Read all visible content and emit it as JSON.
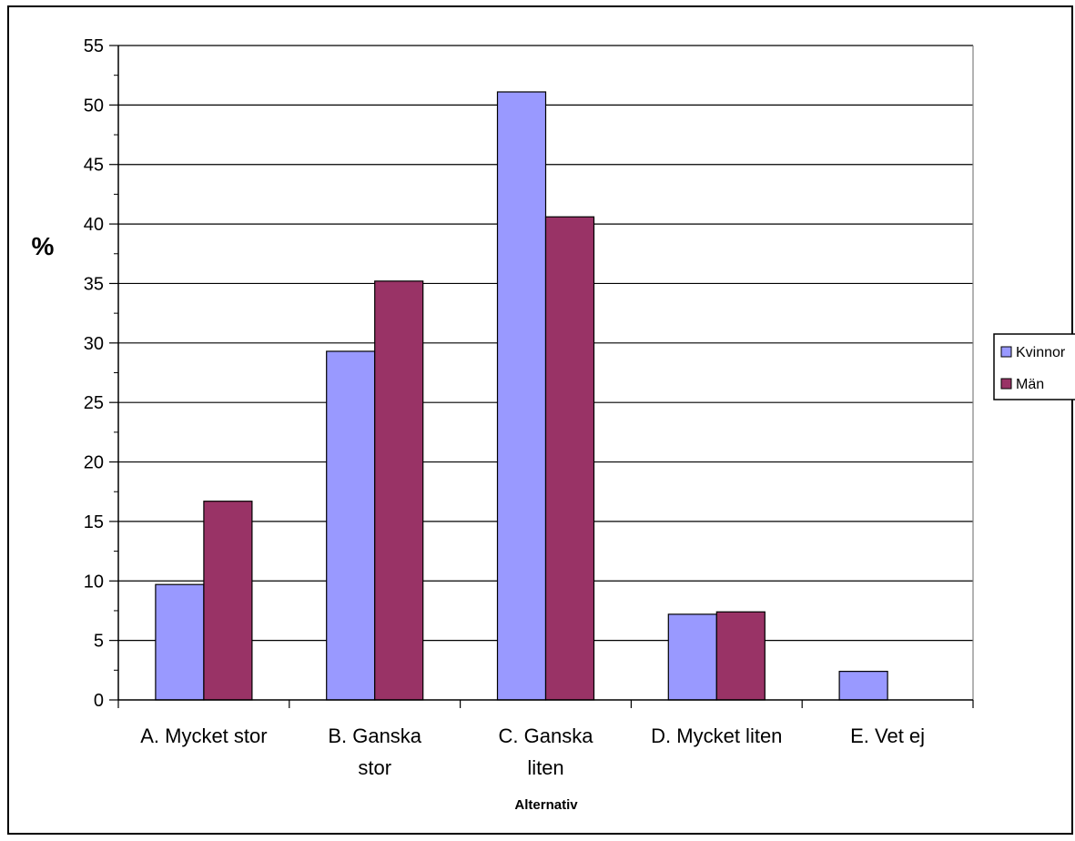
{
  "chart_data": {
    "type": "bar",
    "categories": [
      "A. Mycket stor",
      "B. Ganska stor",
      "C. Ganska liten",
      "D. Mycket liten",
      "E. Vet ej"
    ],
    "category_lines": [
      [
        "A. Mycket stor"
      ],
      [
        "B. Ganska",
        "stor"
      ],
      [
        "C. Ganska",
        "liten"
      ],
      [
        "D. Mycket liten"
      ],
      [
        "E. Vet ej"
      ]
    ],
    "series": [
      {
        "name": "Kvinnor",
        "values": [
          9.7,
          29.3,
          51.1,
          7.2,
          2.4
        ],
        "color": "#9999ff"
      },
      {
        "name": "Män",
        "values": [
          16.7,
          35.2,
          40.6,
          7.4,
          0
        ],
        "color": "#993366"
      }
    ],
    "title": "",
    "xlabel": "Alternativ",
    "ylabel": "%",
    "ylim": [
      0,
      55
    ],
    "major_step": 5,
    "minor_step": 2.5,
    "grid": true,
    "legend_position": "right",
    "legend_labels": [
      "Kvinnor",
      "Män"
    ]
  }
}
